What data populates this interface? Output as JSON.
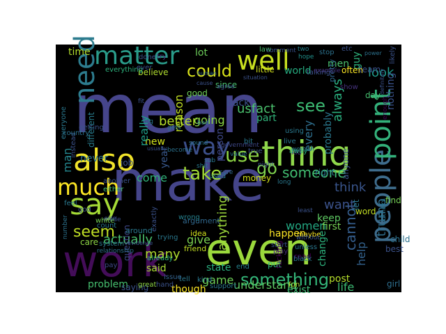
{
  "background_color": "#000000",
  "palette": [
    "#440154",
    "#3b528b",
    "#21908d",
    "#5dc963",
    "#c2df23",
    "#fde725"
  ],
  "words": [
    {
      "text": "mean",
      "color": "#46458b"
    },
    {
      "text": "make",
      "color": "#45458a"
    },
    {
      "text": "even",
      "color": "#9bd93c"
    },
    {
      "text": "work",
      "color": "#440d59"
    },
    {
      "text": "thing",
      "color": "#8fd74b"
    },
    {
      "text": "people",
      "color": "#3e6c8c"
    },
    {
      "text": "point",
      "color": "#33b07a"
    },
    {
      "text": "also",
      "color": "#f0e32a"
    },
    {
      "text": "say",
      "color": "#a5db36"
    },
    {
      "text": "need",
      "color": "#2d7c8e"
    },
    {
      "text": "matter",
      "color": "#2a9c8a"
    },
    {
      "text": "well",
      "color": "#c8e020"
    },
    {
      "text": "way",
      "color": "#3c4f8a"
    },
    {
      "text": "much",
      "color": "#fde725"
    },
    {
      "text": "use",
      "color": "#8ed645"
    },
    {
      "text": "could",
      "color": "#d8e219"
    },
    {
      "text": "something",
      "color": "#34b679"
    },
    {
      "text": "go",
      "color": "#7fd34e"
    },
    {
      "text": "take",
      "color": "#a2da37"
    },
    {
      "text": "someone",
      "color": "#42be71"
    },
    {
      "text": "seem",
      "color": "#c0df25"
    },
    {
      "text": "see",
      "color": "#3dbc74"
    },
    {
      "text": "look",
      "color": "#1f9a8a"
    },
    {
      "text": "actually",
      "color": "#4ac16d"
    },
    {
      "text": "anything",
      "color": "#9dd93b"
    },
    {
      "text": "cannot",
      "color": "#355e8d"
    },
    {
      "text": "think",
      "color": "#39558c"
    },
    {
      "text": "trump",
      "color": "#2e6e8e"
    },
    {
      "text": "reason",
      "color": "#c2df23"
    },
    {
      "text": "better",
      "color": "#b5de2b"
    },
    {
      "text": "time",
      "color": "#b2dd2d"
    },
    {
      "text": "usfact",
      "color": "#4ac16d"
    },
    {
      "text": "lot",
      "color": "#6ccd5a"
    },
    {
      "text": "going",
      "color": "#8bd646"
    },
    {
      "text": "always",
      "color": "#2ab07f"
    },
    {
      "text": "want",
      "color": "#3b528b"
    },
    {
      "text": "women",
      "color": "#23a983"
    },
    {
      "text": "many",
      "color": "#b0dd2f"
    },
    {
      "text": "give",
      "color": "#7ad151"
    },
    {
      "text": "come",
      "color": "#31b57b"
    },
    {
      "text": "new",
      "color": "#d2e21b"
    },
    {
      "text": "year",
      "color": "#38588c"
    },
    {
      "text": "person",
      "color": "#3f4889"
    },
    {
      "text": "said",
      "color": "#a8db34"
    },
    {
      "text": "understand",
      "color": "#5ec962"
    },
    {
      "text": "really",
      "color": "#1f9e89"
    },
    {
      "text": "man",
      "color": "#24868e"
    },
    {
      "text": "never",
      "color": "#2c728e"
    },
    {
      "text": "world",
      "color": "#26ad81"
    },
    {
      "text": "men",
      "color": "#4ac16d"
    },
    {
      "text": "good",
      "color": "#6ece58"
    },
    {
      "text": "part",
      "color": "#31b57b"
    },
    {
      "text": "back",
      "color": "#3b528b"
    },
    {
      "text": "every",
      "color": "#2e6f8e"
    },
    {
      "text": "probably",
      "color": "#2a788e"
    },
    {
      "text": "keep",
      "color": "#5ec962"
    },
    {
      "text": "help",
      "color": "#33628d"
    },
    {
      "text": "happen",
      "color": "#fde725"
    },
    {
      "text": "first",
      "color": "#75d054"
    },
    {
      "text": "post",
      "color": "#b5de2b"
    },
    {
      "text": "life",
      "color": "#3dbc74"
    },
    {
      "text": "game",
      "color": "#6ece58"
    },
    {
      "text": "state",
      "color": "#2ab07f"
    },
    {
      "text": "problem",
      "color": "#46c06f"
    },
    {
      "text": "saying",
      "color": "#3b528b"
    },
    {
      "text": "question",
      "color": "#3f4889"
    },
    {
      "text": "change",
      "color": "#2db27d"
    },
    {
      "text": "exist",
      "color": "#3dbc74"
    },
    {
      "text": "money",
      "color": "#d2e21b"
    },
    {
      "text": "though",
      "color": "#fde725"
    },
    {
      "text": "care",
      "color": "#8ed645"
    },
    {
      "text": "job",
      "color": "#3b528b"
    },
    {
      "text": "believe",
      "color": "#b0dd2f"
    },
    {
      "text": "different",
      "color": "#287d8e"
    },
    {
      "text": "nothing",
      "color": "#3a538b"
    },
    {
      "text": "guy",
      "color": "#2db27d"
    },
    {
      "text": "right",
      "color": "#2a788e"
    },
    {
      "text": "since",
      "color": "#4ac16d"
    },
    {
      "text": "anyone",
      "color": "#3b528b"
    },
    {
      "text": "child",
      "color": "#2c728e"
    },
    {
      "text": "best",
      "color": "#3b528b"
    },
    {
      "text": "girl",
      "color": "#2e6e8e"
    },
    {
      "text": "find",
      "color": "#75d054"
    },
    {
      "text": "word",
      "color": "#c2df23"
    },
    {
      "text": "let",
      "color": "#2a788e"
    },
    {
      "text": "law",
      "color": "#4ac16d"
    },
    {
      "text": "etc",
      "color": "#3b528b"
    },
    {
      "text": "stop",
      "color": "#2c728e"
    },
    {
      "text": "hope",
      "color": "#21918c"
    },
    {
      "text": "two",
      "color": "#26828e"
    },
    {
      "text": "often",
      "color": "#fde725"
    },
    {
      "text": "team",
      "color": "#3b528b"
    },
    {
      "text": "day",
      "color": "#46c06f"
    },
    {
      "text": "show",
      "color": "#46337e"
    },
    {
      "text": "talking",
      "color": "#3b528b"
    },
    {
      "text": "pretty",
      "color": "#31688e"
    },
    {
      "text": "little",
      "color": "#d2e21b"
    },
    {
      "text": "comment",
      "color": "#3b528b"
    },
    {
      "text": "read",
      "color": "#440154"
    },
    {
      "text": "play",
      "color": "#472c7a"
    },
    {
      "text": "black",
      "color": "#2a788e"
    },
    {
      "text": "unless",
      "color": "#2a788e"
    },
    {
      "text": "agree",
      "color": "#3b528b"
    },
    {
      "text": "government",
      "color": "#3f4889"
    },
    {
      "text": "value",
      "color": "#2c728e"
    },
    {
      "text": "woman",
      "color": "#2a788e"
    },
    {
      "text": "kid",
      "color": "#46337e"
    },
    {
      "text": "end",
      "color": "#26828e"
    },
    {
      "text": "put",
      "color": "#31b57b"
    },
    {
      "text": "start",
      "color": "#3b528b"
    },
    {
      "text": "maybe",
      "color": "#fde725"
    },
    {
      "text": "fucking",
      "color": "#440154"
    },
    {
      "text": "fun",
      "color": "#b5de2b"
    },
    {
      "text": "support",
      "color": "#2a788e"
    },
    {
      "text": "hand",
      "color": "#3b528b"
    },
    {
      "text": "great",
      "color": "#8ed645"
    },
    {
      "text": "tell",
      "color": "#2a788e"
    },
    {
      "text": "kind",
      "color": "#2a788e"
    },
    {
      "text": "issue",
      "color": "#33628d"
    },
    {
      "text": "friend",
      "color": "#c2df23"
    },
    {
      "text": "idea",
      "color": "#d2e21b"
    },
    {
      "text": "already",
      "color": "#2db27d"
    },
    {
      "text": "pay",
      "color": "#3f4889"
    },
    {
      "text": "system",
      "color": "#2a788e"
    },
    {
      "text": "relationship",
      "color": "#2c728e"
    },
    {
      "text": "exactly",
      "color": "#3b528b"
    },
    {
      "text": "trying",
      "color": "#2a788e"
    },
    {
      "text": "argument",
      "color": "#31688e"
    },
    {
      "text": "wrong",
      "color": "#26828e"
    },
    {
      "text": "around",
      "color": "#2a788e"
    },
    {
      "text": "count",
      "color": "#2a788e"
    },
    {
      "text": "made",
      "color": "#3b528b"
    },
    {
      "text": "white",
      "color": "#75d054"
    },
    {
      "text": "number",
      "color": "#2c728e"
    },
    {
      "text": "god",
      "color": "#3b528b"
    },
    {
      "text": "feel",
      "color": "#2a788e"
    },
    {
      "text": "either",
      "color": "#46c06f"
    },
    {
      "text": "another",
      "color": "#3b528b"
    },
    {
      "text": "everything",
      "color": "#2db27d"
    },
    {
      "text": "ever",
      "color": "#3b528b"
    },
    {
      "text": "done",
      "color": "#3b528b"
    },
    {
      "text": "try",
      "color": "#46337e"
    },
    {
      "text": "instead",
      "color": "#3b528b"
    },
    {
      "text": "everyone",
      "color": "#2a788e"
    },
    {
      "text": "country",
      "color": "#2c728e"
    },
    {
      "text": "getting",
      "color": "#3b528b"
    },
    {
      "text": "human",
      "color": "#31688e"
    },
    {
      "text": "situation",
      "color": "#3b528b"
    },
    {
      "text": "using",
      "color": "#2a788e"
    },
    {
      "text": "away",
      "color": "#2db27d"
    },
    {
      "text": "live",
      "color": "#2a788e"
    },
    {
      "text": "bit",
      "color": "#2a788e"
    },
    {
      "text": "true",
      "color": "#3b528b"
    },
    {
      "text": "night",
      "color": "#3b528b"
    },
    {
      "text": "sure",
      "color": "#31688e"
    },
    {
      "text": "sound",
      "color": "#2a788e"
    },
    {
      "text": "become",
      "color": "#2c728e"
    },
    {
      "text": "shit",
      "color": "#2a788e"
    },
    {
      "text": "gets",
      "color": "#2a788e"
    },
    {
      "text": "bad",
      "color": "#2c728e"
    },
    {
      "text": "big",
      "color": "#2a788e"
    },
    {
      "text": "usually",
      "color": "#3b528b"
    },
    {
      "text": "used",
      "color": "#2a788e"
    },
    {
      "text": "example",
      "color": "#46337e"
    },
    {
      "text": "likely",
      "color": "#3b528b"
    },
    {
      "text": "least",
      "color": "#3b528b"
    },
    {
      "text": "without",
      "color": "#3b528b"
    },
    {
      "text": "others",
      "color": "#2a788e"
    },
    {
      "text": "side",
      "color": "#3b528b"
    },
    {
      "text": "cause",
      "color": "#3b528b"
    },
    {
      "text": "power",
      "color": "#2c728e"
    },
    {
      "text": "evidence",
      "color": "#3b528b"
    },
    {
      "text": "enough",
      "color": "#440154"
    },
    {
      "text": "definitely",
      "color": "#3b528b"
    },
    {
      "text": "sub",
      "color": "#2a788e"
    },
    {
      "text": "fit",
      "color": "#3b528b"
    },
    {
      "text": "long",
      "color": "#2a788e"
    }
  ]
}
